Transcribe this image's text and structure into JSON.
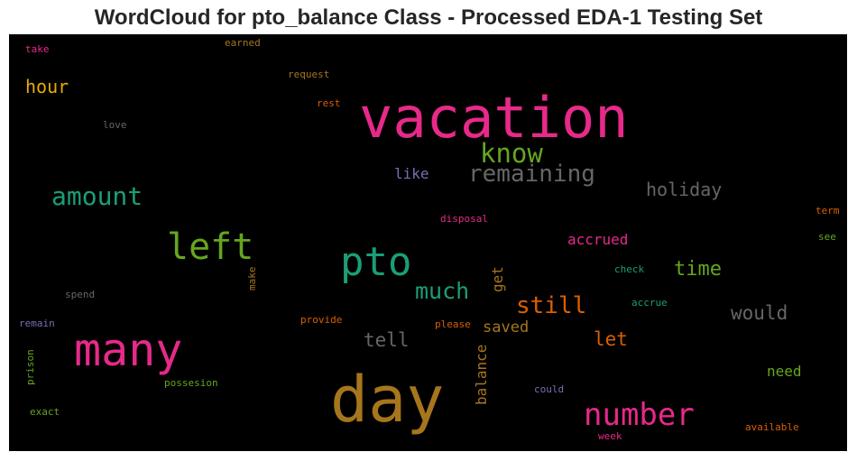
{
  "title": "WordCloud for pto_balance Class - Processed EDA-1 Testing Set",
  "words": {
    "vacation": {
      "text": "vacation",
      "color": "#e7298a"
    },
    "day": {
      "text": "day",
      "color": "#a6761d"
    },
    "many": {
      "text": "many",
      "color": "#e7298a"
    },
    "left": {
      "text": "left",
      "color": "#66a61e"
    },
    "pto": {
      "text": "pto",
      "color": "#1b9e77"
    },
    "number": {
      "text": "number",
      "color": "#e7298a"
    },
    "remaining": {
      "text": "remaining",
      "color": "#666666"
    },
    "know": {
      "text": "know",
      "color": "#66a61e"
    },
    "amount": {
      "text": "amount",
      "color": "#1b9e77"
    },
    "much": {
      "text": "much",
      "color": "#1b9e77"
    },
    "still": {
      "text": "still",
      "color": "#d95f02"
    },
    "hour": {
      "text": "hour",
      "color": "#e6ab02"
    },
    "holiday": {
      "text": "holiday",
      "color": "#666666"
    },
    "time": {
      "text": "time",
      "color": "#66a61e"
    },
    "would": {
      "text": "would",
      "color": "#666666"
    },
    "tell": {
      "text": "tell",
      "color": "#666666"
    },
    "let": {
      "text": "let",
      "color": "#d95f02"
    },
    "saved": {
      "text": "saved",
      "color": "#a6761d"
    },
    "accrued": {
      "text": "accrued",
      "color": "#e7298a"
    },
    "like": {
      "text": "like",
      "color": "#7570b3"
    },
    "balance": {
      "text": "balance",
      "color": "#a6761d"
    },
    "get": {
      "text": "get",
      "color": "#a6761d"
    },
    "need": {
      "text": "need",
      "color": "#66a61e"
    },
    "take": {
      "text": "take",
      "color": "#e7298a"
    },
    "earned": {
      "text": "earned",
      "color": "#a6761d"
    },
    "request": {
      "text": "request",
      "color": "#a6761d"
    },
    "rest": {
      "text": "rest",
      "color": "#d95f02"
    },
    "love": {
      "text": "love",
      "color": "#666666"
    },
    "disposal": {
      "text": "disposal",
      "color": "#e7298a"
    },
    "term": {
      "text": "term",
      "color": "#d95f02"
    },
    "see": {
      "text": "see",
      "color": "#66a61e"
    },
    "make": {
      "text": "make",
      "color": "#a6761d"
    },
    "check": {
      "text": "check",
      "color": "#1b9e77"
    },
    "accrue": {
      "text": "accrue",
      "color": "#1b9e77"
    },
    "spend": {
      "text": "spend",
      "color": "#666666"
    },
    "remain": {
      "text": "remain",
      "color": "#7570b3"
    },
    "provide": {
      "text": "provide",
      "color": "#d95f02"
    },
    "please": {
      "text": "please",
      "color": "#d95f02"
    },
    "prison": {
      "text": "prison",
      "color": "#66a61e"
    },
    "possesion": {
      "text": "possesion",
      "color": "#66a61e"
    },
    "could": {
      "text": "could",
      "color": "#7570b3"
    },
    "exact": {
      "text": "exact",
      "color": "#66a61e"
    },
    "week": {
      "text": "week",
      "color": "#e7298a"
    },
    "available": {
      "text": "available",
      "color": "#d95f02"
    }
  }
}
